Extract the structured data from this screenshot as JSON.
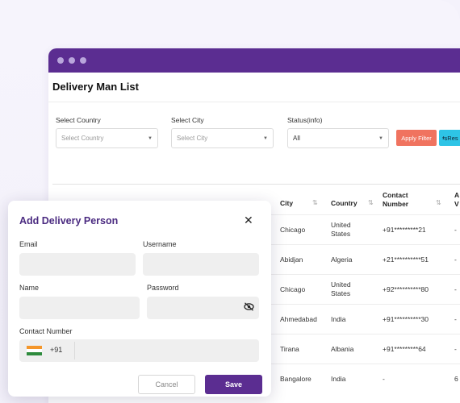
{
  "page": {
    "title": "Delivery Man List"
  },
  "filters": {
    "country": {
      "label": "Select Country",
      "placeholder": "Select Country"
    },
    "city": {
      "label": "Select City",
      "placeholder": "Select City"
    },
    "status": {
      "label": "Status(info)",
      "value": "All"
    },
    "apply_label": "Apply Filter",
    "reset_label": "Res"
  },
  "table": {
    "columns": {
      "city": "City",
      "country": "Country",
      "contact": "Contact Number",
      "extra": "A V"
    },
    "rows": [
      {
        "city": "Chicago",
        "country": "United States",
        "contact": "+91*********21",
        "extra": "-"
      },
      {
        "city": "Abidjan",
        "country": "Algeria",
        "contact": "+21**********51",
        "extra": "-"
      },
      {
        "city": "Chicago",
        "country": "United States",
        "contact": "+92**********80",
        "extra": "-"
      },
      {
        "city": "Ahmedabad",
        "country": "India",
        "contact": "+91**********30",
        "extra": "-"
      },
      {
        "city": "Tirana",
        "country": "Albania",
        "contact": "+91*********64",
        "extra": "-"
      },
      {
        "city": "Bangalore",
        "country": "India",
        "contact": "-",
        "extra": "6"
      }
    ]
  },
  "modal": {
    "title": "Add Delivery Person",
    "email_label": "Email",
    "username_label": "Username",
    "name_label": "Name",
    "password_label": "Password",
    "contact_label": "Contact Number",
    "country_code": "+91",
    "cancel_label": "Cancel",
    "save_label": "Save"
  },
  "colors": {
    "brand": "#5b2d91",
    "apply": "#f0735f",
    "reset": "#2ec4e6"
  },
  "icons": {
    "close": "close-icon",
    "eye": "eye-off-icon",
    "sort": "sort-icon",
    "caret": "chevron-down-icon",
    "flag": "india-flag-icon",
    "reset": "refresh-icon"
  }
}
